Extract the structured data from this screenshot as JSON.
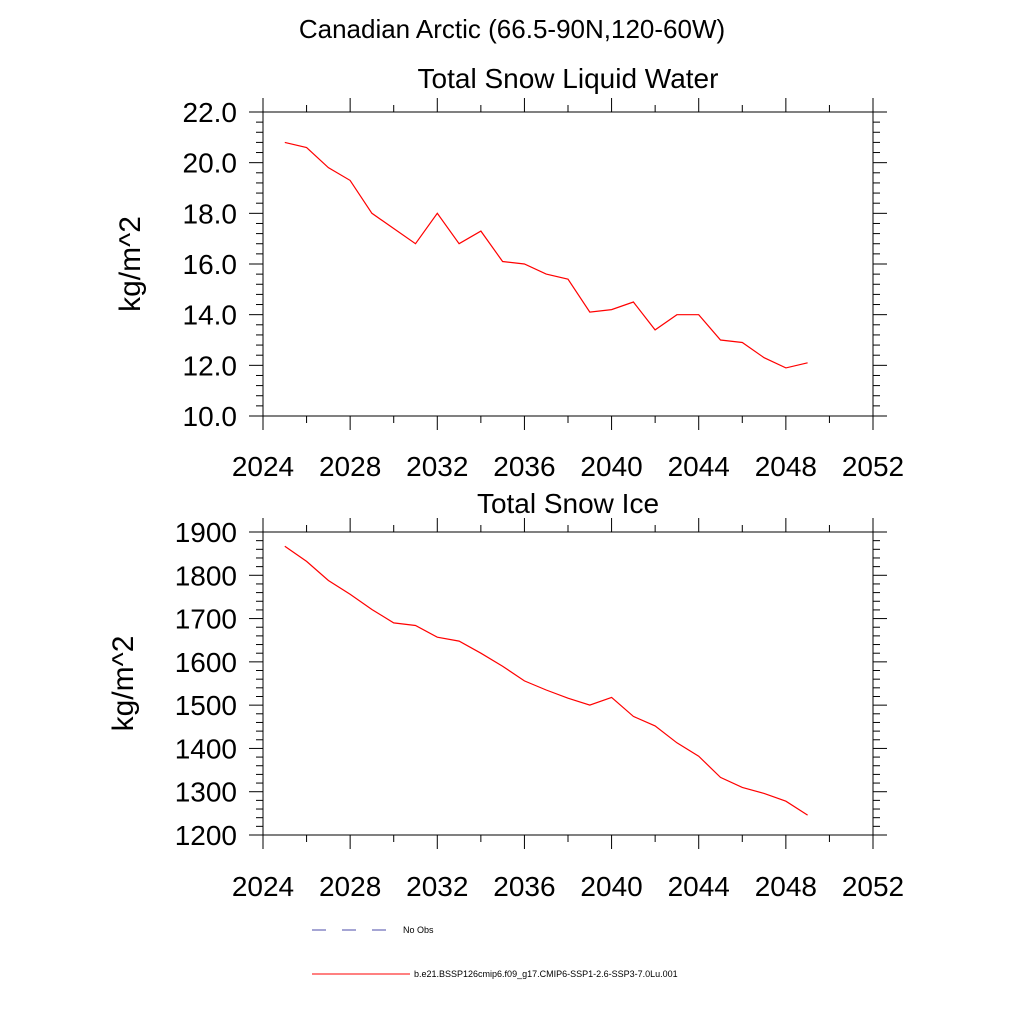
{
  "page": {
    "title": "Canadian Arctic (66.5-90N,120-60W)"
  },
  "colors": {
    "series": "#ff0000",
    "no_obs": "#4b4ba8",
    "axis": "#000000"
  },
  "chart_data": [
    {
      "type": "line",
      "title": "Total Snow Liquid Water",
      "xlabel": "",
      "ylabel": "kg/m^2",
      "xlim": [
        2024,
        2052
      ],
      "ylim": [
        10,
        22
      ],
      "x_ticks": [
        2024,
        2028,
        2032,
        2036,
        2040,
        2044,
        2048,
        2052
      ],
      "x_tick_labels": [
        "2024",
        "2028",
        "2032",
        "2036",
        "2040",
        "2044",
        "2048",
        "2052"
      ],
      "y_ticks": [
        10,
        12,
        14,
        16,
        18,
        20,
        22
      ],
      "y_tick_labels": [
        "10.0",
        "12.0",
        "14.0",
        "16.0",
        "18.0",
        "20.0",
        "22.0"
      ],
      "grid": false,
      "series": [
        {
          "name": "b.e21.BSSP126cmip6.f09_g17.CMIP6-SSP1-2.6-SSP3-7.0Lu.001",
          "x": [
            2025,
            2026,
            2027,
            2028,
            2029,
            2030,
            2031,
            2032,
            2033,
            2034,
            2035,
            2036,
            2037,
            2038,
            2039,
            2040,
            2041,
            2042,
            2043,
            2044,
            2045,
            2046,
            2047,
            2048,
            2049
          ],
          "y": [
            20.8,
            20.6,
            19.8,
            19.3,
            18.0,
            17.4,
            16.8,
            18.0,
            16.8,
            17.3,
            16.1,
            16.0,
            15.6,
            15.4,
            14.1,
            14.2,
            14.5,
            13.4,
            14.0,
            14.0,
            13.0,
            12.9,
            12.3,
            11.9,
            12.1
          ]
        }
      ]
    },
    {
      "type": "line",
      "title": "Total Snow Ice",
      "xlabel": "",
      "ylabel": "kg/m^2",
      "xlim": [
        2024,
        2052
      ],
      "ylim": [
        1200,
        1900
      ],
      "x_ticks": [
        2024,
        2028,
        2032,
        2036,
        2040,
        2044,
        2048,
        2052
      ],
      "x_tick_labels": [
        "2024",
        "2028",
        "2032",
        "2036",
        "2040",
        "2044",
        "2048",
        "2052"
      ],
      "y_ticks": [
        1200,
        1300,
        1400,
        1500,
        1600,
        1700,
        1800,
        1900
      ],
      "y_tick_labels": [
        "1200",
        "1300",
        "1400",
        "1500",
        "1600",
        "1700",
        "1800",
        "1900"
      ],
      "grid": false,
      "series": [
        {
          "name": "b.e21.BSSP126cmip6.f09_g17.CMIP6-SSP1-2.6-SSP3-7.0Lu.001",
          "x": [
            2025,
            2026,
            2027,
            2028,
            2029,
            2030,
            2031,
            2032,
            2033,
            2034,
            2035,
            2036,
            2037,
            2038,
            2039,
            2040,
            2041,
            2042,
            2043,
            2044,
            2045,
            2046,
            2047,
            2048,
            2049
          ],
          "y": [
            1867,
            1832,
            1788,
            1756,
            1721,
            1690,
            1684,
            1657,
            1648,
            1620,
            1590,
            1556,
            1535,
            1516,
            1500,
            1518,
            1474,
            1452,
            1413,
            1382,
            1333,
            1310,
            1296,
            1278,
            1246
          ]
        }
      ]
    }
  ],
  "legend": {
    "items": [
      {
        "label": "No Obs",
        "style": "dashed"
      },
      {
        "label": "b.e21.BSSP126cmip6.f09_g17.CMIP6-SSP1-2.6-SSP3-7.0Lu.001",
        "style": "solid"
      }
    ]
  }
}
